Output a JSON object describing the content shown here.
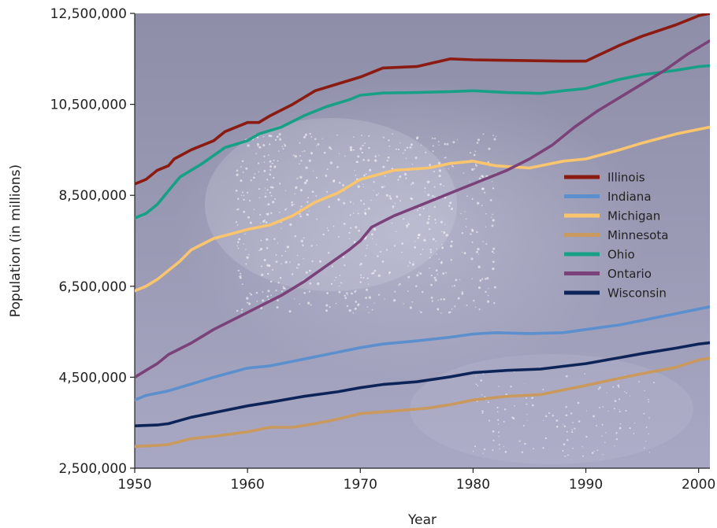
{
  "chart_data": {
    "type": "line",
    "title": "",
    "xlabel": "Year",
    "ylabel": "Population (in millions)",
    "xlim": [
      1950,
      2001
    ],
    "ylim": [
      2500000,
      12500000
    ],
    "x_ticks": [
      1950,
      1960,
      1970,
      1980,
      1990,
      2000
    ],
    "y_ticks": [
      2500000,
      4500000,
      6500000,
      8500000,
      10500000,
      12500000
    ],
    "x_tick_labels": [
      "1950",
      "1960",
      "1970",
      "1980",
      "1990",
      "2000"
    ],
    "y_tick_labels": [
      "2,500,000",
      "4,500,000",
      "6,500,000",
      "8,500,000",
      "10,500,000",
      "12,500,000"
    ],
    "grid": false,
    "legend_position": "right",
    "background": "night-time satellite image of North America",
    "series": [
      {
        "name": "Illinois",
        "color": "#8b1a10",
        "points": [
          [
            1950,
            8750000
          ],
          [
            1951,
            8850000
          ],
          [
            1952,
            9050000
          ],
          [
            1953,
            9150000
          ],
          [
            1953.5,
            9300000
          ],
          [
            1955,
            9500000
          ],
          [
            1957,
            9700000
          ],
          [
            1958,
            9900000
          ],
          [
            1960,
            10100000
          ],
          [
            1961,
            10100000
          ],
          [
            1962,
            10250000
          ],
          [
            1964,
            10500000
          ],
          [
            1966,
            10800000
          ],
          [
            1968,
            10950000
          ],
          [
            1970,
            11100000
          ],
          [
            1972,
            11300000
          ],
          [
            1975,
            11330000
          ],
          [
            1978,
            11500000
          ],
          [
            1980,
            11480000
          ],
          [
            1985,
            11460000
          ],
          [
            1988,
            11450000
          ],
          [
            1990,
            11450000
          ],
          [
            1993,
            11800000
          ],
          [
            1995,
            12000000
          ],
          [
            1998,
            12250000
          ],
          [
            2000,
            12450000
          ],
          [
            2001,
            12500000
          ]
        ]
      },
      {
        "name": "Indiana",
        "color": "#5b8fcd",
        "points": [
          [
            1950,
            4000000
          ],
          [
            1951,
            4100000
          ],
          [
            1952,
            4150000
          ],
          [
            1953,
            4200000
          ],
          [
            1955,
            4350000
          ],
          [
            1957,
            4500000
          ],
          [
            1960,
            4700000
          ],
          [
            1962,
            4750000
          ],
          [
            1965,
            4900000
          ],
          [
            1968,
            5050000
          ],
          [
            1970,
            5150000
          ],
          [
            1972,
            5230000
          ],
          [
            1975,
            5300000
          ],
          [
            1978,
            5380000
          ],
          [
            1980,
            5450000
          ],
          [
            1982,
            5480000
          ],
          [
            1985,
            5460000
          ],
          [
            1988,
            5480000
          ],
          [
            1990,
            5550000
          ],
          [
            1993,
            5650000
          ],
          [
            1995,
            5750000
          ],
          [
            1998,
            5900000
          ],
          [
            2000,
            6000000
          ],
          [
            2001,
            6050000
          ]
        ]
      },
      {
        "name": "Michigan",
        "color": "#fbc56d",
        "points": [
          [
            1950,
            6400000
          ],
          [
            1951,
            6500000
          ],
          [
            1952,
            6650000
          ],
          [
            1953,
            6850000
          ],
          [
            1954,
            7050000
          ],
          [
            1955,
            7300000
          ],
          [
            1957,
            7550000
          ],
          [
            1960,
            7750000
          ],
          [
            1962,
            7850000
          ],
          [
            1964,
            8050000
          ],
          [
            1966,
            8350000
          ],
          [
            1968,
            8550000
          ],
          [
            1970,
            8850000
          ],
          [
            1973,
            9050000
          ],
          [
            1976,
            9100000
          ],
          [
            1978,
            9200000
          ],
          [
            1980,
            9250000
          ],
          [
            1982,
            9150000
          ],
          [
            1985,
            9100000
          ],
          [
            1988,
            9250000
          ],
          [
            1990,
            9300000
          ],
          [
            1993,
            9500000
          ],
          [
            1995,
            9650000
          ],
          [
            1998,
            9850000
          ],
          [
            2000,
            9950000
          ],
          [
            2001,
            10000000
          ]
        ]
      },
      {
        "name": "Minnesota",
        "color": "#c9995e",
        "points": [
          [
            1950,
            2980000
          ],
          [
            1952,
            3000000
          ],
          [
            1953,
            3020000
          ],
          [
            1955,
            3150000
          ],
          [
            1957,
            3200000
          ],
          [
            1960,
            3300000
          ],
          [
            1962,
            3400000
          ],
          [
            1964,
            3400000
          ],
          [
            1966,
            3480000
          ],
          [
            1968,
            3580000
          ],
          [
            1970,
            3700000
          ],
          [
            1973,
            3760000
          ],
          [
            1976,
            3820000
          ],
          [
            1978,
            3900000
          ],
          [
            1980,
            4000000
          ],
          [
            1983,
            4080000
          ],
          [
            1986,
            4120000
          ],
          [
            1988,
            4220000
          ],
          [
            1990,
            4320000
          ],
          [
            1993,
            4480000
          ],
          [
            1995,
            4580000
          ],
          [
            1998,
            4720000
          ],
          [
            2000,
            4880000
          ],
          [
            2001,
            4920000
          ]
        ]
      },
      {
        "name": "Ohio",
        "color": "#17a085",
        "points": [
          [
            1950,
            8000000
          ],
          [
            1951,
            8100000
          ],
          [
            1952,
            8300000
          ],
          [
            1953,
            8600000
          ],
          [
            1954,
            8900000
          ],
          [
            1956,
            9200000
          ],
          [
            1958,
            9550000
          ],
          [
            1960,
            9700000
          ],
          [
            1961,
            9850000
          ],
          [
            1963,
            10000000
          ],
          [
            1965,
            10250000
          ],
          [
            1967,
            10450000
          ],
          [
            1969,
            10600000
          ],
          [
            1970,
            10700000
          ],
          [
            1972,
            10750000
          ],
          [
            1975,
            10760000
          ],
          [
            1978,
            10780000
          ],
          [
            1980,
            10800000
          ],
          [
            1983,
            10760000
          ],
          [
            1986,
            10740000
          ],
          [
            1988,
            10800000
          ],
          [
            1990,
            10850000
          ],
          [
            1993,
            11050000
          ],
          [
            1995,
            11150000
          ],
          [
            1998,
            11250000
          ],
          [
            2000,
            11330000
          ],
          [
            2001,
            11350000
          ]
        ]
      },
      {
        "name": "Ontario",
        "color": "#7b4279",
        "points": [
          [
            1950,
            4500000
          ],
          [
            1951,
            4650000
          ],
          [
            1952,
            4800000
          ],
          [
            1953,
            5000000
          ],
          [
            1955,
            5250000
          ],
          [
            1957,
            5550000
          ],
          [
            1959,
            5800000
          ],
          [
            1961,
            6050000
          ],
          [
            1963,
            6300000
          ],
          [
            1965,
            6600000
          ],
          [
            1967,
            6950000
          ],
          [
            1969,
            7300000
          ],
          [
            1970,
            7500000
          ],
          [
            1971,
            7800000
          ],
          [
            1973,
            8050000
          ],
          [
            1975,
            8250000
          ],
          [
            1977,
            8450000
          ],
          [
            1979,
            8650000
          ],
          [
            1981,
            8850000
          ],
          [
            1983,
            9050000
          ],
          [
            1985,
            9300000
          ],
          [
            1987,
            9600000
          ],
          [
            1989,
            10000000
          ],
          [
            1991,
            10350000
          ],
          [
            1993,
            10650000
          ],
          [
            1995,
            10950000
          ],
          [
            1997,
            11250000
          ],
          [
            1999,
            11600000
          ],
          [
            2001,
            11900000
          ]
        ]
      },
      {
        "name": "Wisconsin",
        "color": "#0d2458",
        "points": [
          [
            1950,
            3430000
          ],
          [
            1952,
            3450000
          ],
          [
            1953,
            3480000
          ],
          [
            1954,
            3550000
          ],
          [
            1955,
            3620000
          ],
          [
            1957,
            3720000
          ],
          [
            1960,
            3870000
          ],
          [
            1962,
            3950000
          ],
          [
            1965,
            4080000
          ],
          [
            1968,
            4180000
          ],
          [
            1970,
            4270000
          ],
          [
            1972,
            4340000
          ],
          [
            1975,
            4400000
          ],
          [
            1978,
            4510000
          ],
          [
            1980,
            4600000
          ],
          [
            1983,
            4650000
          ],
          [
            1986,
            4680000
          ],
          [
            1988,
            4740000
          ],
          [
            1990,
            4800000
          ],
          [
            1993,
            4930000
          ],
          [
            1995,
            5020000
          ],
          [
            1998,
            5140000
          ],
          [
            2000,
            5230000
          ],
          [
            2001,
            5260000
          ]
        ]
      }
    ]
  }
}
